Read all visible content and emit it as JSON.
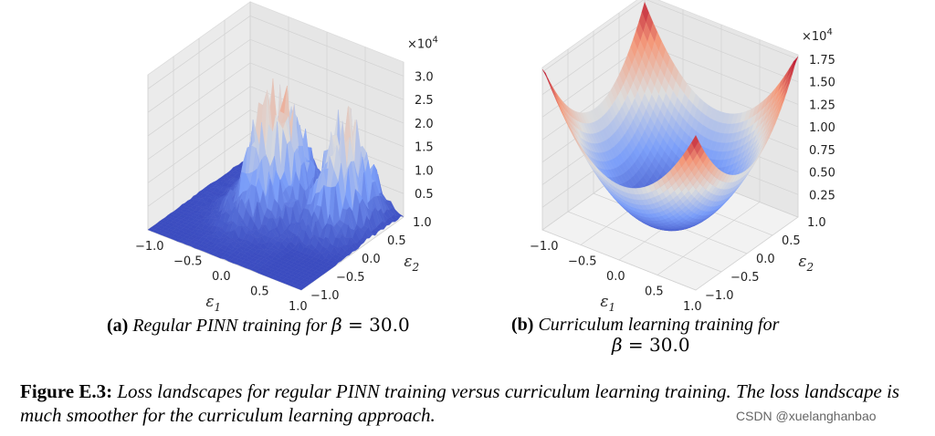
{
  "chart_data": [
    {
      "type": "surface3d",
      "panel": "a",
      "ticks_e1": [
        "−1.0",
        "−0.5",
        "0.0",
        "0.5",
        "1.0"
      ],
      "ticks_e2": [
        "−1.0",
        "−0.5",
        "0.0",
        "0.5",
        "1.0"
      ],
      "ticks_z": [
        "0.5",
        "1.0",
        "1.5",
        "2.0",
        "2.5",
        "3.0"
      ],
      "z_values": [
        0.5,
        1.0,
        1.5,
        2.0,
        2.5,
        3.0
      ],
      "z_multiplier": "×10",
      "z_multiplier_exp": "4",
      "xlabel": "ε",
      "xlabel_sub": "1",
      "ylabel": "ε",
      "ylabel_sub": "2",
      "zlim": [
        0,
        3.3
      ],
      "surface": "rough, spiky loss landscape with peaks up to ~3.3×10^4 concentrated in two ridges; flat near zero elsewhere",
      "colormap": "coolwarm"
    },
    {
      "type": "surface3d",
      "panel": "b",
      "ticks_e1": [
        "−1.0",
        "−0.5",
        "0.0",
        "0.5",
        "1.0"
      ],
      "ticks_e2": [
        "−1.0",
        "−0.5",
        "0.0",
        "0.5",
        "1.0"
      ],
      "ticks_z": [
        "0.25",
        "0.50",
        "0.75",
        "1.00",
        "1.25",
        "1.50",
        "1.75"
      ],
      "z_values": [
        0.25,
        0.5,
        0.75,
        1.0,
        1.25,
        1.5,
        1.75
      ],
      "z_multiplier": "×10",
      "z_multiplier_exp": "4",
      "xlabel": "ε",
      "xlabel_sub": "1",
      "ylabel": "ε",
      "ylabel_sub": "2",
      "zlim": [
        0,
        1.8
      ],
      "surface": "smooth convex bowl with minimum near 0 at center and maximum ~1.75×10^4 at corners",
      "colormap": "coolwarm"
    }
  ],
  "captions": {
    "a_label": "(a)",
    "a_text": "Regular PINN training for",
    "a_math_sym": "β",
    "a_math_eq": " = 30.0",
    "b_label": "(b)",
    "b_text": "Curriculum learning training for",
    "b_math_sym": "β",
    "b_math_eq": " = 30.0"
  },
  "figure_caption": {
    "label": "Figure E.3:",
    "text": "Loss landscapes for regular PINN training versus curriculum learning training. The loss landscape is much smoother for the curriculum learning approach."
  },
  "watermark": "CSDN @xuelanghanbao",
  "colors": {
    "cool": "#3b4cc0",
    "mid": "#dddddd",
    "warm": "#b40426",
    "pane": "#ececec"
  }
}
